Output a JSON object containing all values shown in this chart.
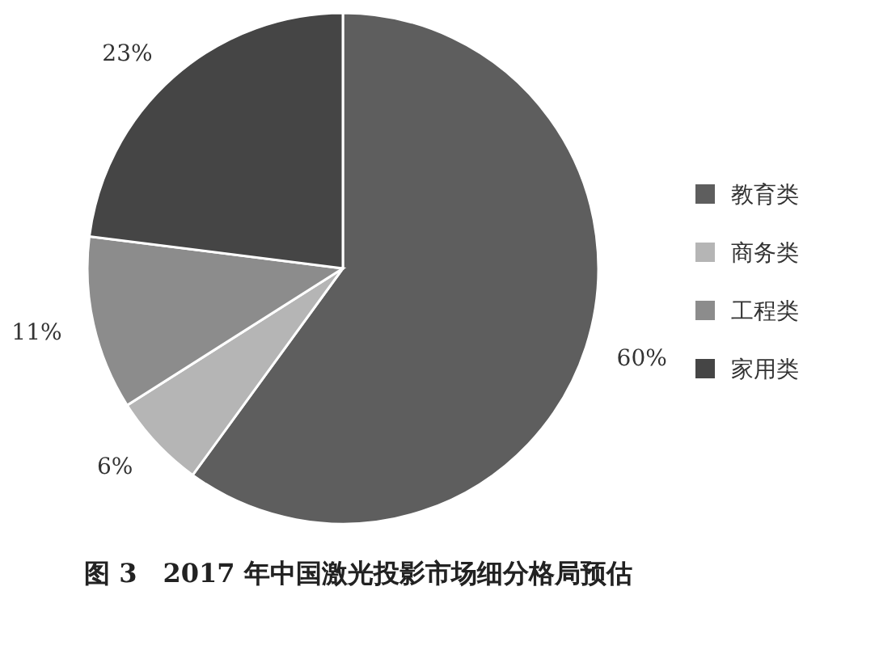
{
  "chart_data": {
    "type": "pie",
    "title": "图 3　2017 年中国激光投影市场细分格局预估",
    "categories": [
      "教育类",
      "商务类",
      "工程类",
      "家用类"
    ],
    "values": [
      60,
      6,
      11,
      23
    ],
    "colors": [
      "#5e5e5e",
      "#b5b5b5",
      "#8c8c8c",
      "#454545"
    ],
    "value_labels": [
      "60%",
      "6%",
      "11%",
      "23%"
    ],
    "legend": "right"
  }
}
